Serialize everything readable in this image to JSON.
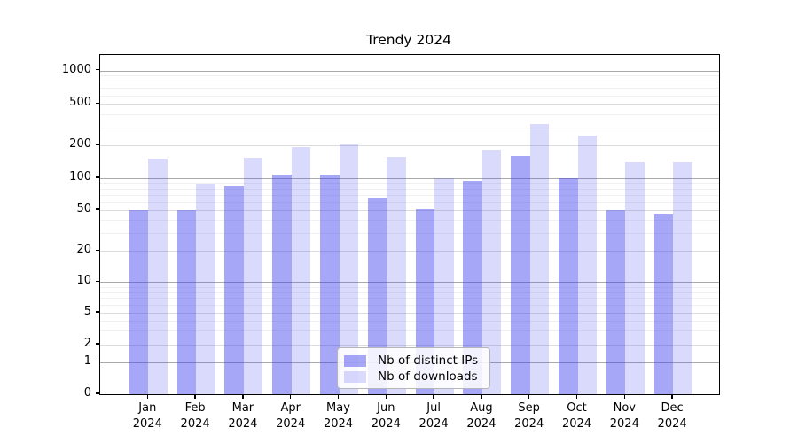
{
  "chart_data": {
    "type": "bar",
    "title": "Trendy 2024",
    "xlabel": "",
    "ylabel": "",
    "categories": [
      "Jan",
      "Feb",
      "Mar",
      "Apr",
      "May",
      "Jun",
      "Jul",
      "Aug",
      "Sep",
      "Oct",
      "Nov",
      "Dec"
    ],
    "xtick_year": "2024",
    "series": [
      {
        "name": "Nb of distinct IPs",
        "color": "rgba(68,68,238,0.47)",
        "values": [
          50,
          50,
          84,
          107,
          107,
          64,
          51,
          94,
          160,
          100,
          50,
          45
        ]
      },
      {
        "name": "Nb of downloads",
        "color": "rgba(68,68,238,0.20)",
        "values": [
          150,
          88,
          153,
          194,
          206,
          158,
          100,
          184,
          322,
          250,
          141,
          140
        ]
      }
    ],
    "yticks": [
      0,
      1,
      2,
      5,
      10,
      20,
      50,
      100,
      200,
      500,
      1000
    ],
    "yscale": "symlog",
    "ylim": [
      0,
      1400
    ],
    "grid": true,
    "legend_position": "lower center",
    "colors": {
      "bar_base": "#4444ee",
      "grid_minor": "#f0f0f0",
      "grid_major": "#dcdcdc",
      "grid_decade": "#a9a9a9"
    }
  }
}
